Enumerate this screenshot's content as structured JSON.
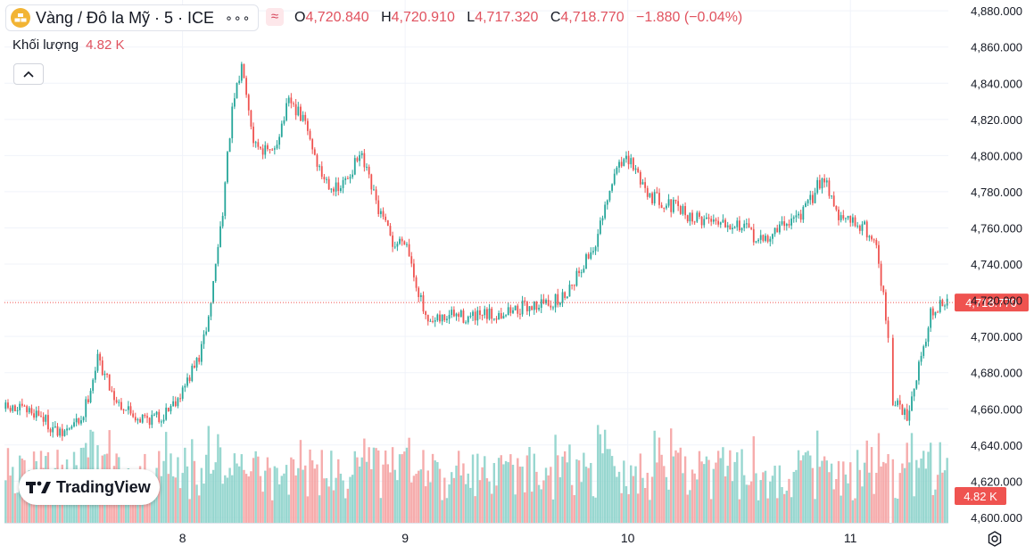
{
  "header": {
    "title": "Vàng / Đô la Mỹ · 5 · ICE",
    "ohlc": [
      {
        "label": "O",
        "value": "4,720.840"
      },
      {
        "label": "H",
        "value": "4,720.910"
      },
      {
        "label": "L",
        "value": "4,717.320"
      },
      {
        "label": "C",
        "value": "4,718.770"
      }
    ],
    "change": "−1.880 (−0.04%)",
    "volume_label": "Khối lượng",
    "volume_value": "4.82 K",
    "more_icon": "more-dots-icon",
    "compare_icon": "wave-icon"
  },
  "branding": {
    "logo_text": "TradingView"
  },
  "colors": {
    "up": "#26a69a",
    "down": "#ef5350",
    "up_vol": "#8dd3cb",
    "down_vol": "#f5a3a3",
    "price_line": "#ef5350"
  },
  "chart_data": {
    "type": "candlestick",
    "title": "Vàng / Đô la Mỹ · 5 · ICE",
    "y_axis": {
      "range": [
        4597,
        4886
      ],
      "ticks": [
        4880,
        4860,
        4840,
        4820,
        4800,
        4780,
        4760,
        4740,
        4720,
        4700,
        4680,
        4660,
        4640,
        4620,
        4600
      ],
      "tick_labels": [
        "4,880.000",
        "4,860.000",
        "4,840.000",
        "4,820.000",
        "4,800.000",
        "4,780.000",
        "4,760.000",
        "4,740.000",
        "4,720.000",
        "4,700.000",
        "4,680.000",
        "4,660.000",
        "4,640.000",
        "4,620.000",
        "4,600.000"
      ]
    },
    "x_axis": {
      "range": [
        7.2,
        11.44
      ],
      "ticks": [
        8,
        9,
        10,
        11
      ],
      "tick_labels": [
        "8",
        "9",
        "10",
        "11"
      ]
    },
    "last_price": 4718.77,
    "last_price_label": "4,718.770",
    "volume_label": "4.82 K",
    "price_path": [
      [
        7.2,
        4660
      ],
      [
        7.35,
        4658
      ],
      [
        7.45,
        4645
      ],
      [
        7.55,
        4655
      ],
      [
        7.62,
        4688
      ],
      [
        7.7,
        4665
      ],
      [
        7.8,
        4655
      ],
      [
        7.9,
        4655
      ],
      [
        8.0,
        4670
      ],
      [
        8.08,
        4690
      ],
      [
        8.12,
        4712
      ],
      [
        8.18,
        4770
      ],
      [
        8.22,
        4822
      ],
      [
        8.27,
        4852
      ],
      [
        8.32,
        4808
      ],
      [
        8.4,
        4800
      ],
      [
        8.48,
        4830
      ],
      [
        8.55,
        4818
      ],
      [
        8.62,
        4790
      ],
      [
        8.7,
        4780
      ],
      [
        8.8,
        4800
      ],
      [
        8.88,
        4770
      ],
      [
        8.95,
        4750
      ],
      [
        9.0,
        4755
      ],
      [
        9.05,
        4730
      ],
      [
        9.1,
        4705
      ],
      [
        9.2,
        4712
      ],
      [
        9.3,
        4710
      ],
      [
        9.4,
        4712
      ],
      [
        9.5,
        4715
      ],
      [
        9.6,
        4718
      ],
      [
        9.7,
        4720
      ],
      [
        9.8,
        4740
      ],
      [
        9.85,
        4750
      ],
      [
        9.9,
        4770
      ],
      [
        9.96,
        4798
      ],
      [
        10.02,
        4795
      ],
      [
        10.1,
        4778
      ],
      [
        10.2,
        4772
      ],
      [
        10.3,
        4765
      ],
      [
        10.4,
        4765
      ],
      [
        10.5,
        4762
      ],
      [
        10.6,
        4752
      ],
      [
        10.7,
        4762
      ],
      [
        10.8,
        4770
      ],
      [
        10.88,
        4790
      ],
      [
        10.95,
        4765
      ],
      [
        11.05,
        4762
      ],
      [
        11.12,
        4750
      ],
      [
        11.2,
        4668
      ],
      [
        11.25,
        4655
      ],
      [
        11.3,
        4680
      ],
      [
        11.36,
        4712
      ],
      [
        11.43,
        4719
      ]
    ],
    "volume": {
      "overlay": "bottom",
      "typical": "4.82 K"
    }
  }
}
